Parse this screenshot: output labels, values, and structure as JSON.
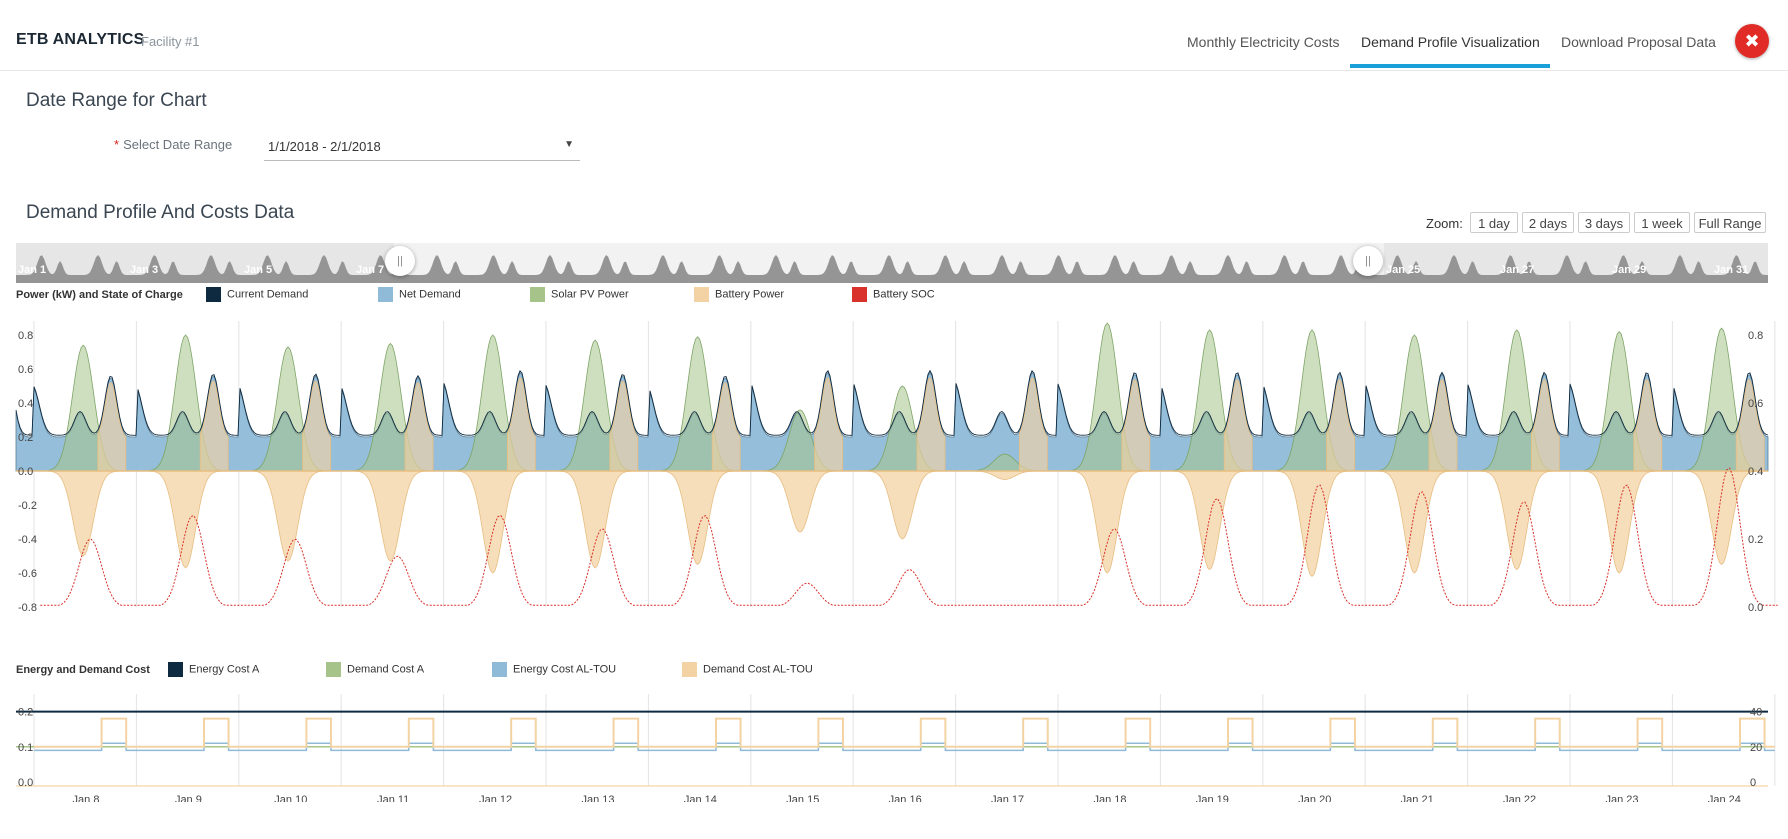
{
  "header": {
    "brand": "ETB ANALYTICS",
    "facility": "Facility #1",
    "tabs": [
      {
        "label": "Monthly Electricity Costs",
        "active": false
      },
      {
        "label": "Demand Profile Visualization",
        "active": true
      },
      {
        "label": "Download Proposal Data",
        "active": false
      }
    ],
    "close_icon": "close-icon",
    "accent_color": "#1aa0d8",
    "close_color": "#e02b27"
  },
  "date_range": {
    "title": "Date Range for Chart",
    "required_marker": "*",
    "label": "Select Date Range",
    "value": "1/1/2018 - 2/1/2018"
  },
  "profile": {
    "title": "Demand Profile And Costs Data",
    "zoom_label": "Zoom:",
    "zoom_buttons": [
      "1 day",
      "2 days",
      "3 days",
      "1 week",
      "Full Range"
    ]
  },
  "navigator": {
    "labels": [
      "Jan 1",
      "Jan 3",
      "Jan 5",
      "Jan 7",
      "Jan 25",
      "Jan 27",
      "Jan 29",
      "Jan 31"
    ],
    "selected_range": [
      "Jan 7",
      "Jan 25"
    ]
  },
  "chart_data": [
    {
      "type": "area",
      "title": "Power (kW) and State of Charge",
      "legend": [
        {
          "name": "Current Demand",
          "color": "#0d2a40"
        },
        {
          "name": "Net Demand",
          "color": "#8fbad8"
        },
        {
          "name": "Solar PV Power",
          "color": "#a6c48a"
        },
        {
          "name": "Battery Power",
          "color": "#f3d3a4"
        },
        {
          "name": "Battery SOC",
          "color": "#d9312b"
        }
      ],
      "y_ticks": [
        "0.8",
        "0.6",
        "0.4",
        "0.2",
        "0.0",
        "-0.2",
        "-0.4",
        "-0.6",
        "-0.8"
      ],
      "y2_ticks": [
        "0.8",
        "0.6",
        "0.4",
        "0.2",
        "0.0"
      ],
      "ylim": [
        -0.8,
        0.8
      ],
      "y2lim": [
        0,
        0.8
      ],
      "x": [
        "Jan 7",
        "Jan 8",
        "Jan 9",
        "Jan 10",
        "Jan 11",
        "Jan 12",
        "Jan 13",
        "Jan 14",
        "Jan 15",
        "Jan 16",
        "Jan 17",
        "Jan 18",
        "Jan 19",
        "Jan 20",
        "Jan 21",
        "Jan 22",
        "Jan 23",
        "Jan 24"
      ],
      "series": [
        {
          "name": "Solar PV Power",
          "daily_peak": [
            0.74,
            0.8,
            0.73,
            0.75,
            0.8,
            0.77,
            0.79,
            0.36,
            0.5,
            0.1,
            0.87,
            0.83,
            0.83,
            0.8,
            0.83,
            0.82,
            0.84
          ]
        },
        {
          "name": "Battery Power",
          "daily_min": [
            -0.5,
            -0.57,
            -0.53,
            -0.53,
            -0.6,
            -0.57,
            -0.55,
            -0.36,
            -0.4,
            -0.05,
            -0.6,
            -0.58,
            -0.62,
            -0.6,
            -0.58,
            -0.6,
            -0.55
          ]
        },
        {
          "name": "Net Demand",
          "evening_peak": [
            0.55,
            0.56,
            0.56,
            0.55,
            0.58,
            0.56,
            0.55,
            0.58,
            0.58,
            0.58,
            0.57,
            0.57,
            0.57,
            0.57,
            0.57,
            0.57,
            0.57
          ]
        },
        {
          "name": "Battery SOC",
          "daily_peak": [
            0.2,
            0.27,
            0.2,
            0.15,
            0.27,
            0.23,
            0.27,
            0.07,
            0.11,
            0.0,
            0.23,
            0.32,
            0.36,
            0.34,
            0.31,
            0.36,
            0.41
          ]
        }
      ]
    },
    {
      "type": "line",
      "title": "Energy and Demand Cost",
      "legend": [
        {
          "name": "Energy Cost A",
          "color": "#0d2a40"
        },
        {
          "name": "Demand Cost A",
          "color": "#a6c48a"
        },
        {
          "name": "Energy Cost AL-TOU",
          "color": "#8fbad8"
        },
        {
          "name": "Demand Cost AL-TOU",
          "color": "#f3d3a4"
        }
      ],
      "y_ticks": [
        "0.2",
        "0.1",
        "0.0"
      ],
      "y2_ticks": [
        "40",
        "20",
        "0"
      ],
      "x_labels": [
        "Jan 8",
        "Jan 9",
        "Jan 10",
        "Jan 11",
        "Jan 12",
        "Jan 13",
        "Jan 14",
        "Jan 15",
        "Jan 16",
        "Jan 17",
        "Jan 18",
        "Jan 19",
        "Jan 20",
        "Jan 21",
        "Jan 22",
        "Jan 23",
        "Jan 24"
      ],
      "series": [
        {
          "name": "Energy Cost A",
          "value": 0.2
        },
        {
          "name": "Demand Cost A",
          "value": 0.1
        },
        {
          "name": "Energy Cost AL-TOU",
          "offpeak": 0.09,
          "peak": 0.11
        },
        {
          "name": "Demand Cost AL-TOU",
          "offpeak": 0.1,
          "peak": 0.18
        }
      ]
    }
  ]
}
